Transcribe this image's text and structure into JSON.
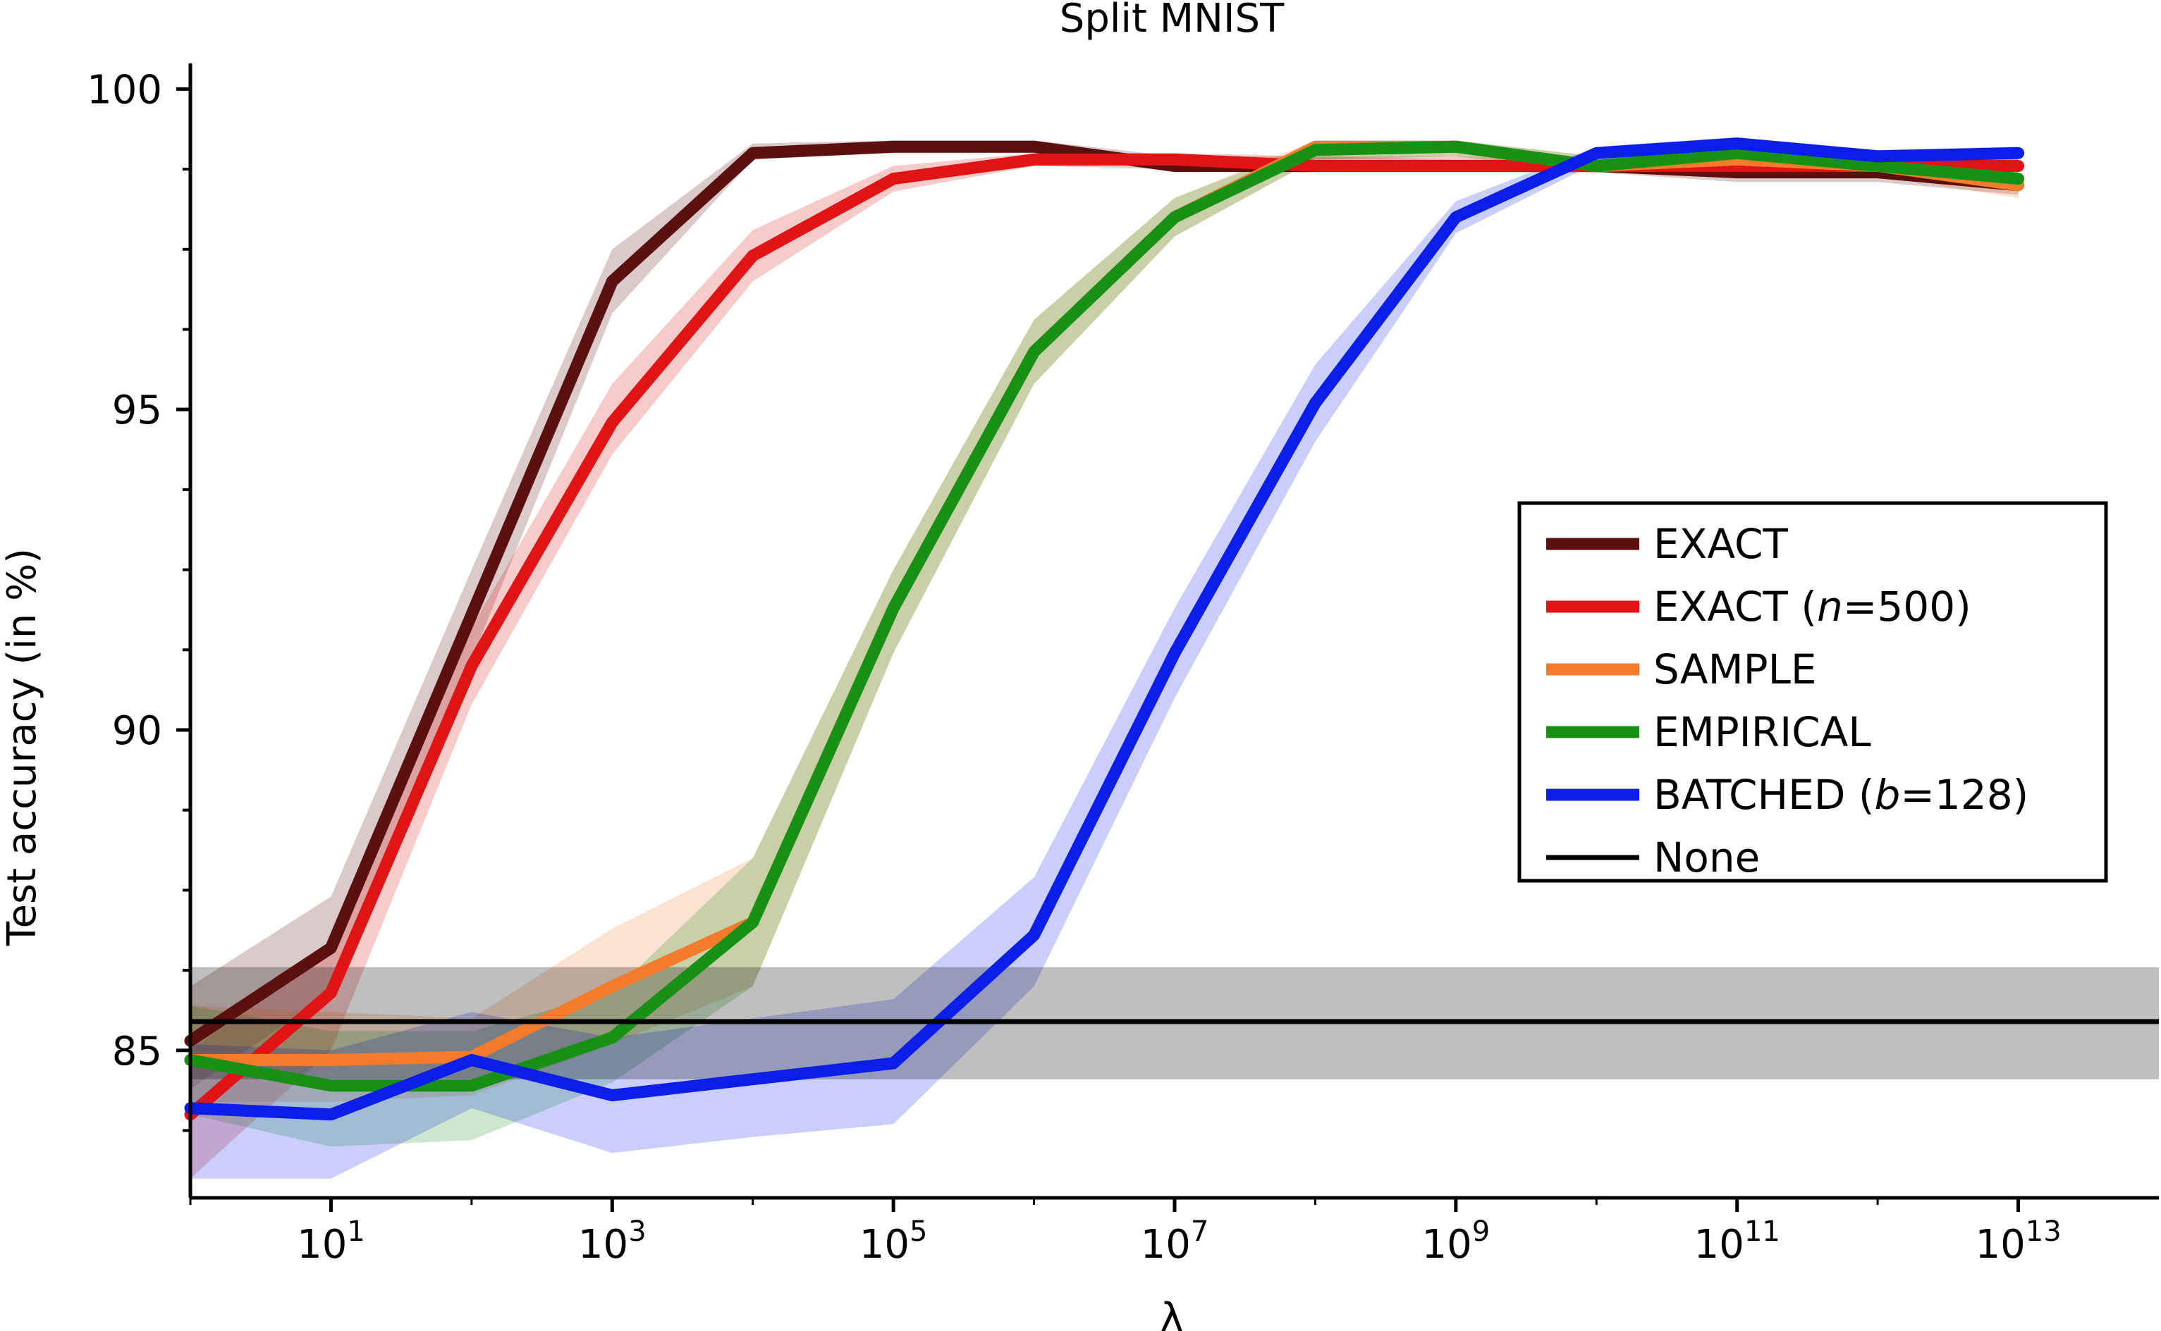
{
  "chart_data": {
    "type": "line",
    "title": "Split MNIST",
    "xlabel": "λ",
    "ylabel": "Test accuracy (in %)",
    "x_scale": "log10",
    "xlim": [
      1,
      100000000000000.0
    ],
    "ylim": [
      82.7,
      100.4
    ],
    "x": [
      1,
      10,
      100,
      1000,
      10000,
      100000,
      1000000,
      10000000,
      100000000,
      1000000000,
      10000000000,
      100000000000,
      1000000000000,
      10000000000000
    ],
    "x_ticks": [
      {
        "value": 10,
        "base": "10",
        "exp": "1"
      },
      {
        "value": 1000,
        "base": "10",
        "exp": "3"
      },
      {
        "value": 100000,
        "base": "10",
        "exp": "5"
      },
      {
        "value": 10000000,
        "base": "10",
        "exp": "7"
      },
      {
        "value": 1000000000,
        "base": "10",
        "exp": "9"
      },
      {
        "value": 100000000000,
        "base": "10",
        "exp": "11"
      },
      {
        "value": 10000000000000,
        "base": "10",
        "exp": "13"
      }
    ],
    "y_ticks": [
      85,
      90,
      95,
      100
    ],
    "y_minor_ticks": [
      83.75,
      86.25,
      87.5,
      88.75,
      91.25,
      92.5,
      93.75,
      96.25,
      97.5,
      98.75
    ],
    "grid": false,
    "legend_position": "right",
    "series": [
      {
        "name": "EXACT",
        "color": "#5c0f0f",
        "values": [
          85.15,
          86.6,
          91.8,
          97.0,
          99.0,
          99.1,
          99.1,
          98.8,
          98.8,
          98.8,
          98.8,
          98.7,
          98.7,
          98.5
        ],
        "lower": [
          84.4,
          85.9,
          91.1,
          96.5,
          98.9,
          99.0,
          99.0,
          98.7,
          98.7,
          98.7,
          98.7,
          98.55,
          98.55,
          98.35
        ],
        "upper": [
          86.0,
          87.4,
          92.5,
          97.5,
          99.15,
          99.2,
          99.2,
          98.95,
          98.95,
          98.9,
          98.9,
          98.85,
          98.85,
          98.65
        ]
      },
      {
        "name": "EXACT (n=500)",
        "name_parts": [
          "EXACT (",
          "n",
          "=500)"
        ],
        "color": "#e01414",
        "values": [
          84.0,
          85.9,
          91.0,
          94.8,
          97.4,
          98.6,
          98.9,
          98.9,
          98.8,
          98.8,
          98.8,
          98.8,
          98.8,
          98.8
        ],
        "lower": [
          83.0,
          85.0,
          90.4,
          94.3,
          97.0,
          98.4,
          98.8,
          98.75,
          98.7,
          98.7,
          98.7,
          98.7,
          98.7,
          98.65
        ],
        "upper": [
          85.0,
          86.6,
          91.6,
          95.4,
          97.8,
          98.8,
          99.0,
          99.0,
          98.95,
          98.95,
          98.9,
          98.9,
          98.9,
          98.95
        ]
      },
      {
        "name": "SAMPLE",
        "color": "#f37b2b",
        "values": [
          84.85,
          84.85,
          84.9,
          86.0,
          87.0,
          91.9,
          95.9,
          98.0,
          99.1,
          99.1,
          98.8,
          98.9,
          98.8,
          98.5
        ],
        "lower": [
          84.2,
          84.2,
          84.3,
          85.1,
          86.0,
          91.2,
          95.4,
          97.7,
          98.9,
          98.95,
          98.7,
          98.8,
          98.65,
          98.3
        ],
        "upper": [
          85.7,
          85.6,
          85.5,
          86.9,
          88.0,
          92.5,
          96.4,
          98.3,
          99.2,
          99.2,
          98.95,
          99.05,
          98.95,
          98.7
        ]
      },
      {
        "name": "EMPIRICAL",
        "color": "#169116",
        "values": [
          84.85,
          84.45,
          84.45,
          85.2,
          87.0,
          91.9,
          95.9,
          98.0,
          99.05,
          99.1,
          98.8,
          99.0,
          98.8,
          98.6
        ],
        "lower": [
          84.0,
          83.5,
          83.6,
          84.5,
          86.0,
          91.2,
          95.4,
          97.7,
          98.9,
          98.95,
          98.7,
          98.9,
          98.7,
          98.45
        ],
        "upper": [
          85.7,
          85.3,
          85.3,
          85.9,
          88.0,
          92.5,
          96.4,
          98.3,
          99.15,
          99.2,
          98.95,
          99.1,
          98.9,
          98.75
        ]
      },
      {
        "name": "BATCHED (b=128)",
        "name_parts": [
          "BATCHED (",
          "b",
          "=128)"
        ],
        "color": "#0a1ee8",
        "values": [
          84.1,
          84.0,
          84.85,
          84.3,
          84.55,
          84.8,
          86.8,
          91.2,
          95.1,
          98.0,
          99.0,
          99.15,
          98.95,
          99.0
        ],
        "lower": [
          83.0,
          83.0,
          84.1,
          83.4,
          83.65,
          83.85,
          86.0,
          90.5,
          94.5,
          97.75,
          98.85,
          99.0,
          98.85,
          98.85
        ],
        "upper": [
          85.1,
          85.0,
          85.6,
          85.2,
          85.5,
          85.8,
          87.7,
          91.9,
          95.7,
          98.25,
          99.1,
          99.25,
          99.05,
          99.1
        ]
      },
      {
        "name": "None",
        "color": "#000000",
        "type": "hline",
        "value": 85.45,
        "lower": 84.55,
        "upper": 86.3
      }
    ]
  }
}
